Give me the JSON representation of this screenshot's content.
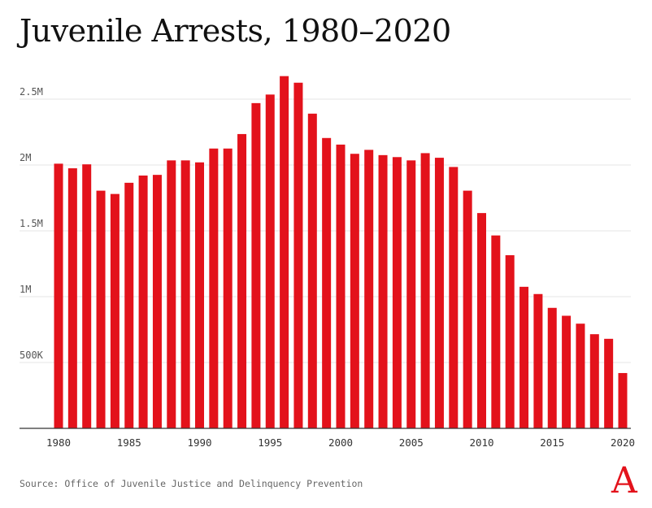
{
  "chart_data": {
    "type": "bar",
    "title": "Juvenile Arrests, 1980–2020",
    "xlabel": "",
    "ylabel": "",
    "x": [
      1980,
      1981,
      1982,
      1983,
      1984,
      1985,
      1986,
      1987,
      1988,
      1989,
      1990,
      1991,
      1992,
      1993,
      1994,
      1995,
      1996,
      1997,
      1998,
      1999,
      2000,
      2001,
      2002,
      2003,
      2004,
      2005,
      2006,
      2007,
      2008,
      2009,
      2010,
      2011,
      2012,
      2013,
      2014,
      2015,
      2016,
      2017,
      2018,
      2019,
      2020
    ],
    "values": [
      2010000,
      1975000,
      2005000,
      1805000,
      1780000,
      1865000,
      1920000,
      1925000,
      2035000,
      2035000,
      2020000,
      2125000,
      2125000,
      2235000,
      2470000,
      2535000,
      2675000,
      2625000,
      2390000,
      2205000,
      2155000,
      2085000,
      2115000,
      2075000,
      2060000,
      2035000,
      2090000,
      2055000,
      1985000,
      1805000,
      1635000,
      1465000,
      1315000,
      1075000,
      1020000,
      915000,
      855000,
      795000,
      715000,
      680000,
      420000
    ],
    "ylim": [
      0,
      2750000
    ],
    "yticks": [
      500000,
      1000000,
      1500000,
      2000000,
      2500000
    ],
    "ytick_labels": [
      "500K",
      "1M",
      "1.5M",
      "2M",
      "2.5M"
    ],
    "xticks": [
      1980,
      1985,
      1990,
      1995,
      2000,
      2005,
      2010,
      2015,
      2020
    ],
    "grid": true,
    "bar_color": "#e3121b"
  },
  "source": "Source: Office of Juvenile Justice and Delinquency Prevention",
  "logo": {
    "text": "A",
    "color": "#e3121b"
  }
}
